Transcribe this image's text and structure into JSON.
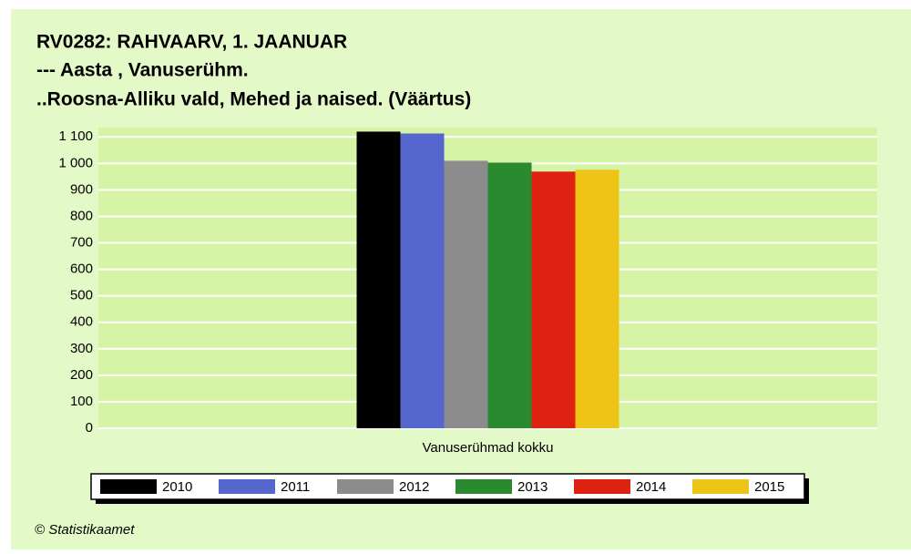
{
  "chart_data": {
    "type": "bar",
    "title": [
      "RV0282: RAHVAARV, 1. JAANUAR",
      "--- Aasta , Vanuserühm.",
      "..Roosna-Alliku vald, Mehed ja naised. (Väärtus)"
    ],
    "categories": [
      "Vanuserühmad kokku"
    ],
    "series": [
      {
        "name": "2010",
        "color": "#000000",
        "values": [
          1120
        ]
      },
      {
        "name": "2011",
        "color": "#5566cc",
        "values": [
          1113
        ]
      },
      {
        "name": "2012",
        "color": "#8c8c8c",
        "values": [
          1010
        ]
      },
      {
        "name": "2013",
        "color": "#2a8a30",
        "values": [
          1003
        ]
      },
      {
        "name": "2014",
        "color": "#dd2211",
        "values": [
          969
        ]
      },
      {
        "name": "2015",
        "color": "#eec416",
        "values": [
          976
        ]
      }
    ],
    "ylim": [
      0,
      1125
    ],
    "yticks": [
      0,
      100,
      200,
      300,
      400,
      500,
      600,
      700,
      800,
      900,
      {
        "value": 1000,
        "label": "1 000"
      },
      {
        "value": 1100,
        "label": "1 100"
      }
    ],
    "grid": true,
    "legend": "bottom",
    "source": "© Statistikaamet"
  }
}
